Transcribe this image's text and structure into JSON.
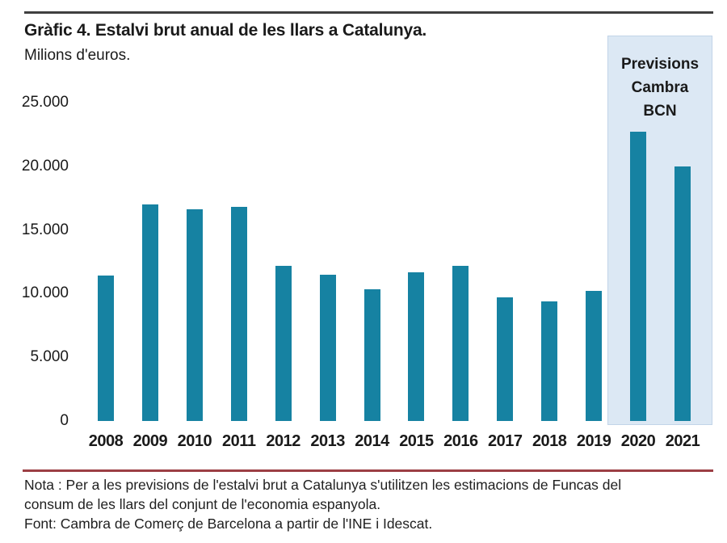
{
  "page": {
    "title": "Gràfic 4. Estalvi brut anual de les llars a Catalunya.",
    "subtitle": "Milions d'euros.",
    "note_line1": "Nota : Per a les previsions de l'estalvi brut a Catalunya s'utilitzen les estimacions de Funcas del",
    "note_line2": "consum de les llars del conjunt de l'economia espanyola.",
    "note_line3": "Font: Cambra de Comerç de Barcelona a partir de l'INE i Idescat."
  },
  "colors": {
    "bar": "#1682a2",
    "forecast_box_fill": "#dce8f4",
    "forecast_box_border": "#c2d4e8",
    "top_rule": "#3f3f3f",
    "note_rule": "#9c3e44",
    "text": "#1a1a1a"
  },
  "forecast": {
    "label": "Previsions\nCambra\nBCN",
    "years_covered": [
      "2020",
      "2021"
    ]
  },
  "chart_data": {
    "type": "bar",
    "title": "Gràfic 4. Estalvi brut anual de les llars a Catalunya.",
    "ylabel": "Milions d'euros.",
    "xlabel": "",
    "categories": [
      "2008",
      "2009",
      "2010",
      "2011",
      "2012",
      "2013",
      "2014",
      "2015",
      "2016",
      "2017",
      "2018",
      "2019",
      "2020",
      "2021"
    ],
    "values": [
      11400,
      17000,
      16600,
      16800,
      12200,
      11500,
      10350,
      11700,
      12200,
      9700,
      9400,
      10200,
      22700,
      20000
    ],
    "ylim": [
      0,
      25000
    ],
    "yticks": {
      "values": [
        0,
        5000,
        10000,
        15000,
        20000,
        25000
      ],
      "labels": [
        "0",
        "5.000",
        "10.000",
        "15.000",
        "20.000",
        "25.000"
      ]
    },
    "grid": false,
    "legend": null,
    "annotation": {
      "label": "Previsions Cambra BCN",
      "applies_to": [
        "2020",
        "2021"
      ],
      "style": "shaded background band behind last two bars"
    }
  }
}
